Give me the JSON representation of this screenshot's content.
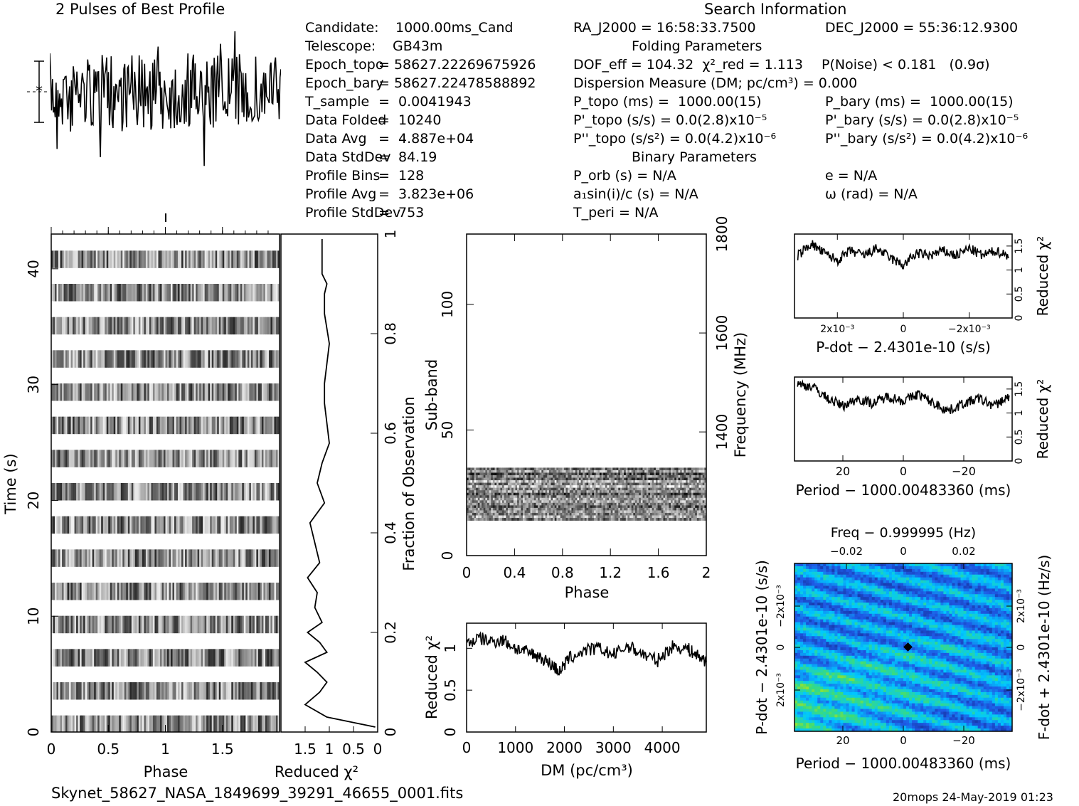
{
  "header": {
    "profile_title": "2 Pulses of Best Profile",
    "search_title": "Search Information"
  },
  "info_col1": [
    {
      "label": "Candidate:",
      "value": "1000.00ms_Cand"
    },
    {
      "label": "Telescope:",
      "value": "GB43m"
    },
    {
      "label": "Epoch_topo",
      "value": "= 58627.22269675926"
    },
    {
      "label": "Epoch_bary",
      "value": "= 58627.22478588892"
    },
    {
      "label": "T_sample",
      "value": "=  0.0041943"
    },
    {
      "label": "Data Folded",
      "value": "=  10240"
    },
    {
      "label": "Data Avg",
      "value": "=  4.887e+04"
    },
    {
      "label": "Data StdDev",
      "value": "=  84.19"
    },
    {
      "label": "Profile Bins",
      "value": "=  128"
    },
    {
      "label": "Profile Avg",
      "value": "=  3.823e+06"
    },
    {
      "label": "Profile StdDev",
      "value": "=  753"
    }
  ],
  "info_col2": {
    "ra": "RA_J2000 = 16:58:33.7500",
    "folding_title": "Folding Parameters",
    "dof": "DOF_eff = 104.32  χ²_red = 1.113",
    "dm": "Dispersion Measure (DM; pc/cm³) = 0.000",
    "p_topo": "P_topo (ms) =  1000.00(15)",
    "pd_topo": "P'_topo (s/s) = 0.0(2.8)x10⁻⁵",
    "pdd_topo": "P''_topo (s/s²) = 0.0(4.2)x10⁻⁶",
    "binary_title": "Binary Parameters",
    "porb": "P_orb (s) = N/A",
    "asini": "a₁sin(i)/c (s) = N/A",
    "tperi": "T_peri = N/A"
  },
  "info_col3": {
    "dec": "DEC_J2000 = 55:36:12.9300",
    "pnoise": "P(Noise) < 0.181   (0.9σ)",
    "p_bary": "P_bary (ms) =  1000.00(15)",
    "pd_bary": "P'_bary (s/s) = 0.0(2.8)x10⁻⁵",
    "pdd_bary": "P''_bary (s/s²) = 0.0(4.2)x10⁻⁶",
    "ecc": "e = N/A",
    "omega": "ω (rad) = N/A"
  },
  "footer": {
    "filename": "Skynet_58627_NASA_1849699_39291_46655_0001.fits",
    "stamp": "20mops 24-May-2019 01:23"
  },
  "colors": {
    "ink": "#000000",
    "cmap_low": "#1a237e",
    "cmap_mid": "#00c8ff",
    "cmap_high": "#d4e600"
  },
  "chart_data": [
    {
      "type": "line",
      "title": "2 Pulses of Best Profile",
      "xlabel": "",
      "ylabel": "",
      "note": "pulse profile over two rotations, noise-like",
      "x_range": [
        0,
        2
      ]
    },
    {
      "type": "heatmap",
      "xlabel": "Phase",
      "ylabel": "Time (s)",
      "xlim": [
        0,
        2
      ],
      "ylim": [
        0,
        43
      ],
      "xticks": [
        "0",
        "0.5",
        "1",
        "1.5"
      ],
      "yticks": [
        "0",
        "10",
        "20",
        "30",
        "40"
      ]
    },
    {
      "type": "line",
      "xlabel": "Reduced χ²",
      "ylabel": "Fraction of Observation",
      "xlim": [
        2,
        0
      ],
      "ylim": [
        0,
        1
      ],
      "xticks": [
        "1.5",
        "1",
        "0.5",
        "0"
      ],
      "yticks": [
        "0",
        "0.2",
        "0.4",
        "0.6",
        "0.8",
        "1"
      ],
      "x": [
        0.05,
        1.05,
        1.5,
        1.2,
        1.05,
        1.25,
        1.5,
        1.05,
        1.2,
        1.45,
        1.15,
        1.3,
        1.25,
        1.45,
        1.2,
        1.3,
        1.4,
        1.1,
        1.25,
        1.15,
        1.0,
        1.05,
        1.1,
        1.1,
        1.05,
        1.0,
        1.05,
        1.1,
        1.1,
        1.1,
        1.05,
        1.15,
        1.15,
        1.15,
        1.15
      ],
      "y": [
        0.01,
        0.03,
        0.055,
        0.08,
        0.1,
        0.12,
        0.14,
        0.16,
        0.18,
        0.2,
        0.22,
        0.25,
        0.28,
        0.31,
        0.34,
        0.38,
        0.42,
        0.46,
        0.5,
        0.54,
        0.58,
        0.62,
        0.66,
        0.7,
        0.74,
        0.78,
        0.81,
        0.84,
        0.86,
        0.88,
        0.9,
        0.92,
        0.94,
        0.96,
        0.99
      ]
    },
    {
      "type": "heatmap",
      "xlabel": "Phase",
      "ylabel": "Sub-band",
      "y2label": "Frequency (MHz)",
      "xlim": [
        0,
        2
      ],
      "ylim": [
        0,
        128
      ],
      "y2lim": [
        1150,
        1800
      ],
      "xticks": [
        "0",
        "0.4",
        "0.8",
        "1.2",
        "1.6",
        "2"
      ],
      "yticks": [
        "0",
        "50",
        "100"
      ],
      "y2ticks": [
        "1400",
        "1600",
        "1800"
      ],
      "data_band": [
        14,
        35
      ]
    },
    {
      "type": "line",
      "xlabel": "DM (pc/cm³)",
      "ylabel": "Reduced χ²",
      "xlim": [
        0,
        4900
      ],
      "ylim": [
        0,
        1.3
      ],
      "xticks": [
        "0",
        "1000",
        "2000",
        "3000",
        "4000"
      ],
      "yticks": [
        "0",
        "0.5",
        "1"
      ],
      "x": [
        0,
        250,
        500,
        750,
        1000,
        1250,
        1500,
        1750,
        1900,
        2100,
        2400,
        2700,
        3000,
        3300,
        3600,
        3900,
        4200,
        4500,
        4700,
        4900
      ],
      "y": [
        1.05,
        1.12,
        1.08,
        1.1,
        1.0,
        0.95,
        0.9,
        0.8,
        0.72,
        0.88,
        0.97,
        1.0,
        0.92,
        1.03,
        0.93,
        0.85,
        1.02,
        1.0,
        0.92,
        0.85
      ]
    },
    {
      "type": "line",
      "xlabel": "P-dot − 2.4301e-10 (s/s)",
      "ylabel": "Reduced χ²",
      "xlim": [
        0.0033,
        -0.0033
      ],
      "ylim": [
        0,
        1.75
      ],
      "xticks": [
        "2x10⁻³",
        "0",
        "−2x10⁻³"
      ],
      "yticks": [
        "0",
        "0.5",
        "1",
        "1.5"
      ],
      "x": [
        0.0032,
        0.0028,
        0.0024,
        0.002,
        0.0016,
        0.0012,
        0.0008,
        0.0004,
        0,
        -0.0004,
        -0.0008,
        -0.0012,
        -0.0016,
        -0.002,
        -0.0024,
        -0.0028,
        -0.0032
      ],
      "y": [
        1.3,
        1.55,
        1.35,
        1.2,
        1.4,
        1.3,
        1.45,
        1.25,
        1.1,
        1.35,
        1.3,
        1.4,
        1.3,
        1.45,
        1.3,
        1.4,
        1.3
      ]
    },
    {
      "type": "line",
      "xlabel": "Period − 1000.00483360 (ms)",
      "ylabel": "Reduced χ²",
      "xlim": [
        36,
        -36
      ],
      "ylim": [
        0,
        1.75
      ],
      "xticks": [
        "20",
        "0",
        "−20"
      ],
      "yticks": [
        "0",
        "0.5",
        "1",
        "1.5"
      ],
      "x": [
        35,
        30,
        25,
        20,
        15,
        10,
        5,
        0,
        -5,
        -10,
        -15,
        -20,
        -25,
        -30,
        -35
      ],
      "y": [
        1.6,
        1.55,
        1.3,
        1.15,
        1.3,
        1.2,
        1.35,
        1.25,
        1.4,
        1.2,
        1.05,
        1.2,
        1.3,
        1.15,
        1.35
      ]
    },
    {
      "type": "heatmap",
      "title": "Freq − 0.999995 (Hz)",
      "xlabel": "Period − 1000.00483360 (ms)",
      "ylabel": "P-dot − 2.4301e-10 (s/s)",
      "y2label": "F-dot + 2.4301e-10 (Hz/s)",
      "xlim": [
        36,
        -36
      ],
      "xticks": [
        "20",
        "0",
        "−20"
      ],
      "x2ticks": [
        "−0.02",
        "0",
        "0.02"
      ],
      "yticks": [
        "−2x10⁻³",
        "0",
        "2x10⁻³"
      ],
      "y2ticks": [
        "2x10⁻³",
        "0",
        "−2x10⁻³"
      ]
    }
  ]
}
